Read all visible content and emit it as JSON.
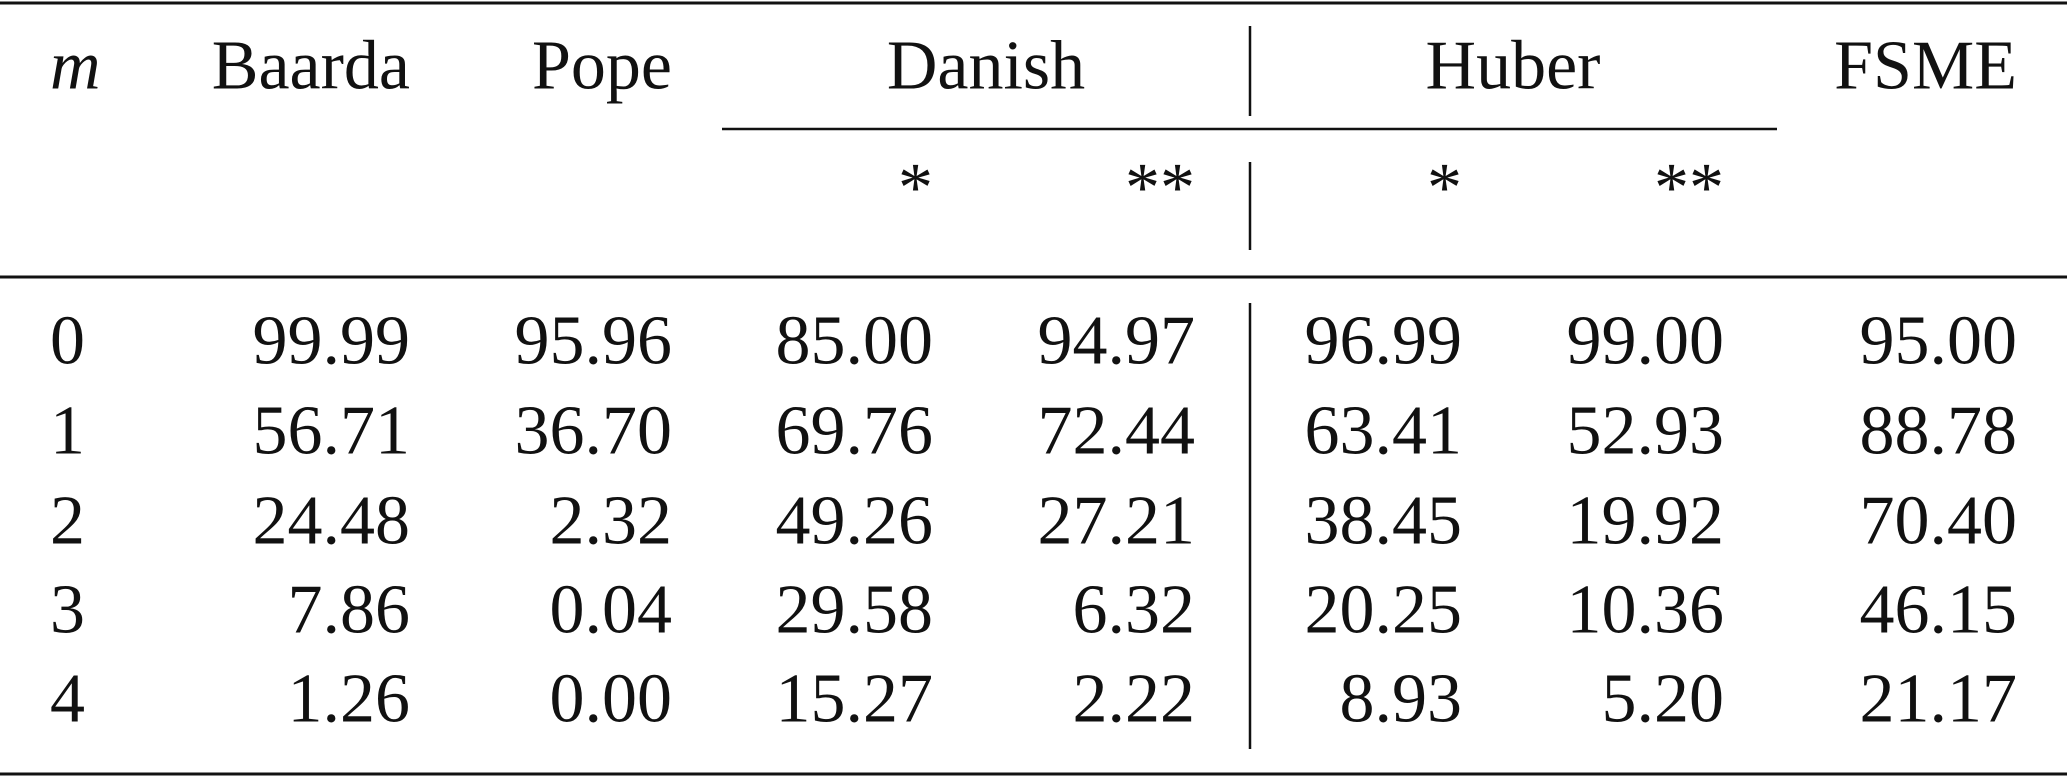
{
  "table": {
    "header": [
      "m",
      "Baarda",
      "Pope",
      "Danish",
      "Huber",
      "FSME"
    ],
    "subheader": [
      "*",
      "**",
      "*",
      "**"
    ],
    "rows": [
      [
        "0",
        "99.99",
        "95.96",
        "85.00",
        "94.97",
        "96.99",
        "99.00",
        "95.00"
      ],
      [
        "1",
        "56.71",
        "36.70",
        "69.76",
        "72.44",
        "63.41",
        "52.93",
        "88.78"
      ],
      [
        "2",
        "24.48",
        "2.32",
        "49.26",
        "27.21",
        "38.45",
        "19.92",
        "70.40"
      ],
      [
        "3",
        "7.86",
        "0.04",
        "29.58",
        "6.32",
        "20.25",
        "10.36",
        "46.15"
      ],
      [
        "4",
        "1.26",
        "0.00",
        "15.27",
        "2.22",
        "8.93",
        "5.20",
        "21.17"
      ]
    ]
  }
}
